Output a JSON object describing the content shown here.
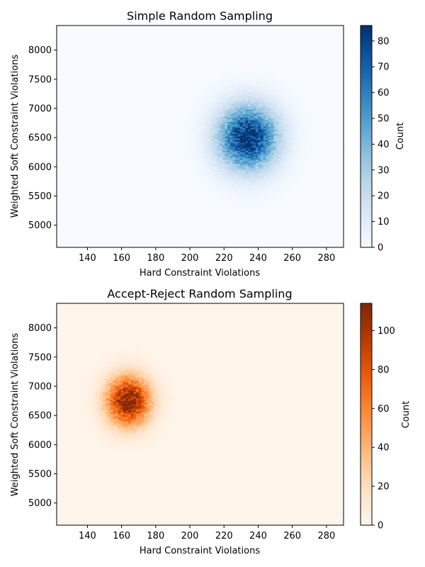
{
  "chart_data": [
    {
      "type": "heatmap",
      "title": "Simple Random Sampling",
      "xlabel": "Hard Constraint Violations",
      "ylabel": "Weighted Soft Constraint Violations",
      "xlim": [
        122,
        290
      ],
      "ylim": [
        4620,
        8420
      ],
      "xticks": [
        "140",
        "160",
        "180",
        "200",
        "220",
        "240",
        "260",
        "280"
      ],
      "xtick_values": [
        140,
        160,
        180,
        200,
        220,
        240,
        260,
        280
      ],
      "yticks": [
        "5000",
        "5500",
        "6000",
        "6500",
        "7000",
        "7500",
        "8000"
      ],
      "ytick_values": [
        5000,
        5500,
        6000,
        6500,
        7000,
        7500,
        8000
      ],
      "colorbar": {
        "label": "Count",
        "range": [
          0,
          86
        ],
        "ticks": [
          "0",
          "10",
          "20",
          "30",
          "40",
          "50",
          "60",
          "70",
          "80"
        ],
        "tick_values": [
          0,
          10,
          20,
          30,
          40,
          50,
          60,
          70,
          80
        ],
        "colormap": "Blues",
        "low_color": "#f7fbff",
        "high_color": "#08306b"
      },
      "distribution": {
        "center_x": 234,
        "center_y": 6500,
        "sd_x": 12,
        "sd_y": 380,
        "peak_count": 86
      }
    },
    {
      "type": "heatmap",
      "title": "Accept-Reject Random Sampling",
      "xlabel": "Hard Constraint Violations",
      "ylabel": "Weighted Soft Constraint Violations",
      "xlim": [
        122,
        290
      ],
      "ylim": [
        4620,
        8420
      ],
      "xticks": [
        "140",
        "160",
        "180",
        "200",
        "220",
        "240",
        "260",
        "280"
      ],
      "xtick_values": [
        140,
        160,
        180,
        200,
        220,
        240,
        260,
        280
      ],
      "yticks": [
        "5000",
        "5500",
        "6000",
        "6500",
        "7000",
        "7500",
        "8000"
      ],
      "ytick_values": [
        5000,
        5500,
        6000,
        6500,
        7000,
        7500,
        8000
      ],
      "colorbar": {
        "label": "Count",
        "range": [
          0,
          114
        ],
        "ticks": [
          "0",
          "20",
          "40",
          "60",
          "80",
          "100"
        ],
        "tick_values": [
          0,
          20,
          40,
          60,
          80,
          100
        ],
        "colormap": "Oranges",
        "low_color": "#fff5eb",
        "high_color": "#7f2704"
      },
      "distribution": {
        "center_x": 164,
        "center_y": 6750,
        "sd_x": 9,
        "sd_y": 300,
        "peak_count": 114
      }
    }
  ]
}
